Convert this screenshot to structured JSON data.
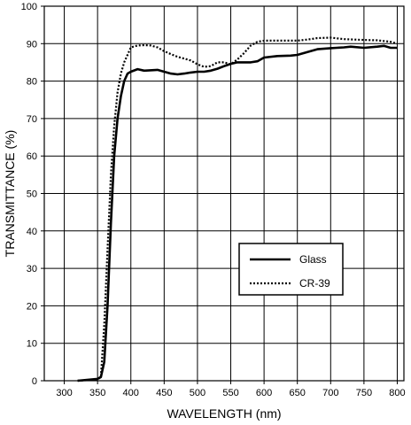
{
  "chart_data": {
    "type": "line",
    "title": "",
    "xlabel": "WAVELENGTH (nm)",
    "ylabel": "TRANSMITTANCE (%)",
    "xlim": [
      270,
      810
    ],
    "ylim": [
      0,
      100
    ],
    "xticks": [
      300,
      350,
      400,
      450,
      500,
      550,
      600,
      650,
      700,
      750,
      800
    ],
    "yticks": [
      0,
      10,
      20,
      30,
      40,
      50,
      60,
      70,
      80,
      90,
      100
    ],
    "grid": "vertical and horizontal at each tick",
    "legend_position": "center-right",
    "series": [
      {
        "name": "Glass",
        "style": "solid",
        "color": "#000000",
        "points": [
          [
            320,
            0
          ],
          [
            350,
            0.5
          ],
          [
            355,
            1
          ],
          [
            360,
            5
          ],
          [
            365,
            20
          ],
          [
            370,
            42
          ],
          [
            375,
            60
          ],
          [
            380,
            70
          ],
          [
            385,
            76
          ],
          [
            390,
            80
          ],
          [
            395,
            82
          ],
          [
            400,
            82.5
          ],
          [
            410,
            83.2
          ],
          [
            420,
            82.8
          ],
          [
            440,
            83
          ],
          [
            450,
            82.5
          ],
          [
            460,
            82
          ],
          [
            470,
            81.8
          ],
          [
            480,
            82
          ],
          [
            490,
            82.3
          ],
          [
            500,
            82.5
          ],
          [
            510,
            82.5
          ],
          [
            520,
            82.8
          ],
          [
            530,
            83.3
          ],
          [
            540,
            84
          ],
          [
            550,
            84.6
          ],
          [
            560,
            85
          ],
          [
            570,
            85
          ],
          [
            580,
            85
          ],
          [
            590,
            85.3
          ],
          [
            600,
            86.3
          ],
          [
            620,
            86.7
          ],
          [
            640,
            86.8
          ],
          [
            650,
            87
          ],
          [
            660,
            87.5
          ],
          [
            670,
            88
          ],
          [
            680,
            88.5
          ],
          [
            700,
            88.8
          ],
          [
            720,
            89
          ],
          [
            730,
            89.2
          ],
          [
            750,
            88.9
          ],
          [
            770,
            89.2
          ],
          [
            780,
            89.4
          ],
          [
            790,
            88.9
          ],
          [
            800,
            88.9
          ]
        ]
      },
      {
        "name": "CR-39",
        "style": "dotted",
        "color": "#000000",
        "points": [
          [
            320,
            0
          ],
          [
            350,
            0.3
          ],
          [
            355,
            1
          ],
          [
            360,
            15
          ],
          [
            365,
            35
          ],
          [
            370,
            55
          ],
          [
            375,
            68
          ],
          [
            380,
            77
          ],
          [
            385,
            82
          ],
          [
            390,
            85
          ],
          [
            395,
            87
          ],
          [
            400,
            89
          ],
          [
            410,
            89.5
          ],
          [
            420,
            89.6
          ],
          [
            430,
            89.5
          ],
          [
            440,
            89
          ],
          [
            450,
            88
          ],
          [
            460,
            87.2
          ],
          [
            470,
            86.5
          ],
          [
            480,
            86
          ],
          [
            490,
            85.5
          ],
          [
            500,
            84.5
          ],
          [
            510,
            83.8
          ],
          [
            520,
            84
          ],
          [
            530,
            85
          ],
          [
            540,
            85
          ],
          [
            550,
            84.5
          ],
          [
            560,
            85.8
          ],
          [
            570,
            87.5
          ],
          [
            580,
            89.5
          ],
          [
            590,
            90.5
          ],
          [
            600,
            90.8
          ],
          [
            620,
            90.8
          ],
          [
            650,
            90.8
          ],
          [
            660,
            91
          ],
          [
            670,
            91.2
          ],
          [
            680,
            91.5
          ],
          [
            700,
            91.6
          ],
          [
            720,
            91.2
          ],
          [
            750,
            91
          ],
          [
            770,
            90.9
          ],
          [
            790,
            90.5
          ],
          [
            800,
            90
          ]
        ]
      }
    ]
  }
}
